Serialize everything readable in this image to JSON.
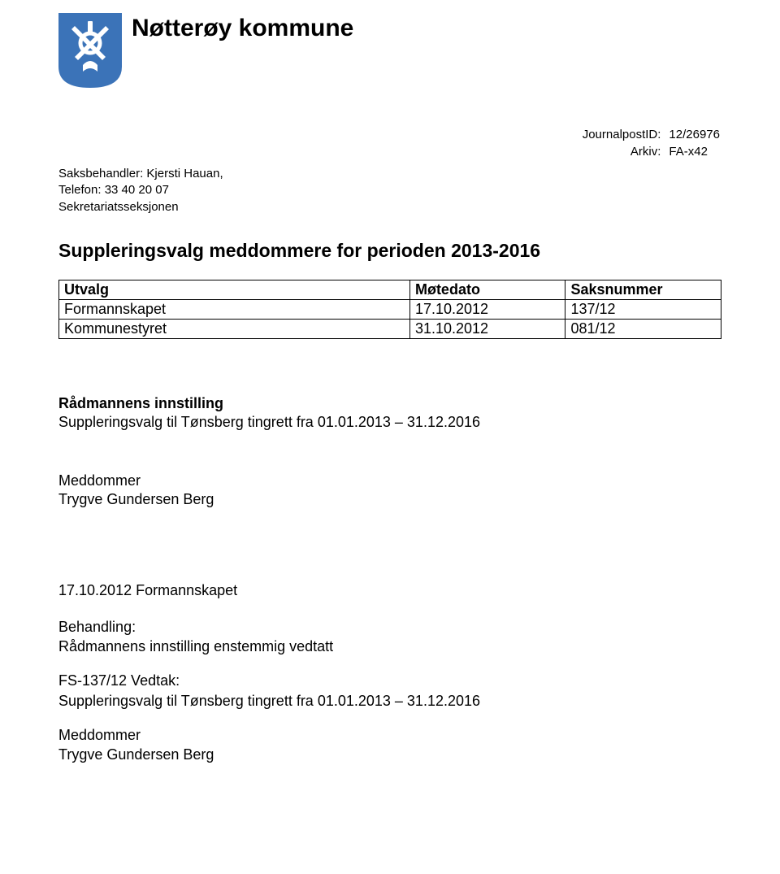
{
  "header": {
    "org_name": "Nøtterøy kommune",
    "crest": {
      "bg_color": "#3b73b8",
      "fg_color": "#ffffff"
    }
  },
  "meta": {
    "journalpost_label": "JournalpostID:",
    "journalpost_value": "12/26976",
    "arkiv_label": "Arkiv:",
    "arkiv_value": "FA-x42"
  },
  "saksbehandler": {
    "line1": "Saksbehandler: Kjersti Hauan,",
    "line2": "Telefon: 33 40 20 07",
    "line3": "Sekretariatsseksjonen"
  },
  "doc_title": "Suppleringsvalg meddommere for perioden 2013-2016",
  "panel": {
    "columns": [
      "Utvalg",
      "Møtedato",
      "Saksnummer"
    ],
    "rows": [
      [
        "Formannskapet",
        "17.10.2012",
        "137/12"
      ],
      [
        "Kommunestyret",
        "31.10.2012",
        "081/12"
      ]
    ],
    "col_widths": [
      "53%",
      "23.5%",
      "23.5%"
    ]
  },
  "innstilling": {
    "heading": "Rådmannens innstilling",
    "text": "Suppleringsvalg til Tønsberg tingrett fra 01.01.2013 – 31.12.2016"
  },
  "meddommer1": {
    "label": "Meddommer",
    "name": "Trygve Gundersen Berg"
  },
  "behandling": {
    "date_heading": "17.10.2012 Formannskapet",
    "behandling_label": "Behandling:",
    "behandling_text": "Rådmannens innstilling enstemmig vedtatt",
    "vedtak_label": "FS-137/12 Vedtak:",
    "vedtak_text": "Suppleringsvalg til Tønsberg tingrett fra 01.01.2013 – 31.12.2016"
  },
  "meddommer2": {
    "label": "Meddommer",
    "name": "Trygve Gundersen Berg"
  }
}
